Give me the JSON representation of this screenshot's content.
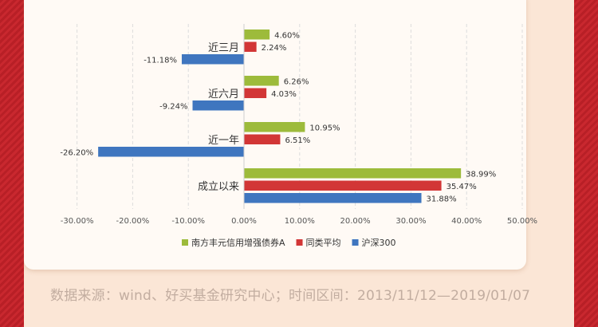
{
  "chart_data": {
    "type": "bar",
    "orientation": "horizontal",
    "categories": [
      "近三月",
      "近六月",
      "近一年",
      "成立以来"
    ],
    "series": [
      {
        "name": "南方丰元信用增强债券A",
        "color": "#9dbb3b",
        "values": [
          4.6,
          6.26,
          10.95,
          38.99
        ]
      },
      {
        "name": "同类平均",
        "color": "#d23636",
        "values": [
          2.24,
          4.03,
          6.51,
          35.47
        ]
      },
      {
        "name": "沪深300",
        "color": "#3f76bf",
        "values": [
          -11.18,
          -9.24,
          -26.2,
          31.88
        ]
      }
    ],
    "xlim": [
      -30,
      50
    ],
    "xticks": [
      -30,
      -20,
      -10,
      0,
      10,
      20,
      30,
      40,
      50
    ],
    "tick_suffix": "%",
    "value_format": "percent-2dp",
    "grid": "vertical-dashed",
    "legend_position": "bottom"
  },
  "footer": {
    "source_text": "数据来源：wind、好买基金研究中心；时间区间：2013/11/12—2019/01/07"
  }
}
